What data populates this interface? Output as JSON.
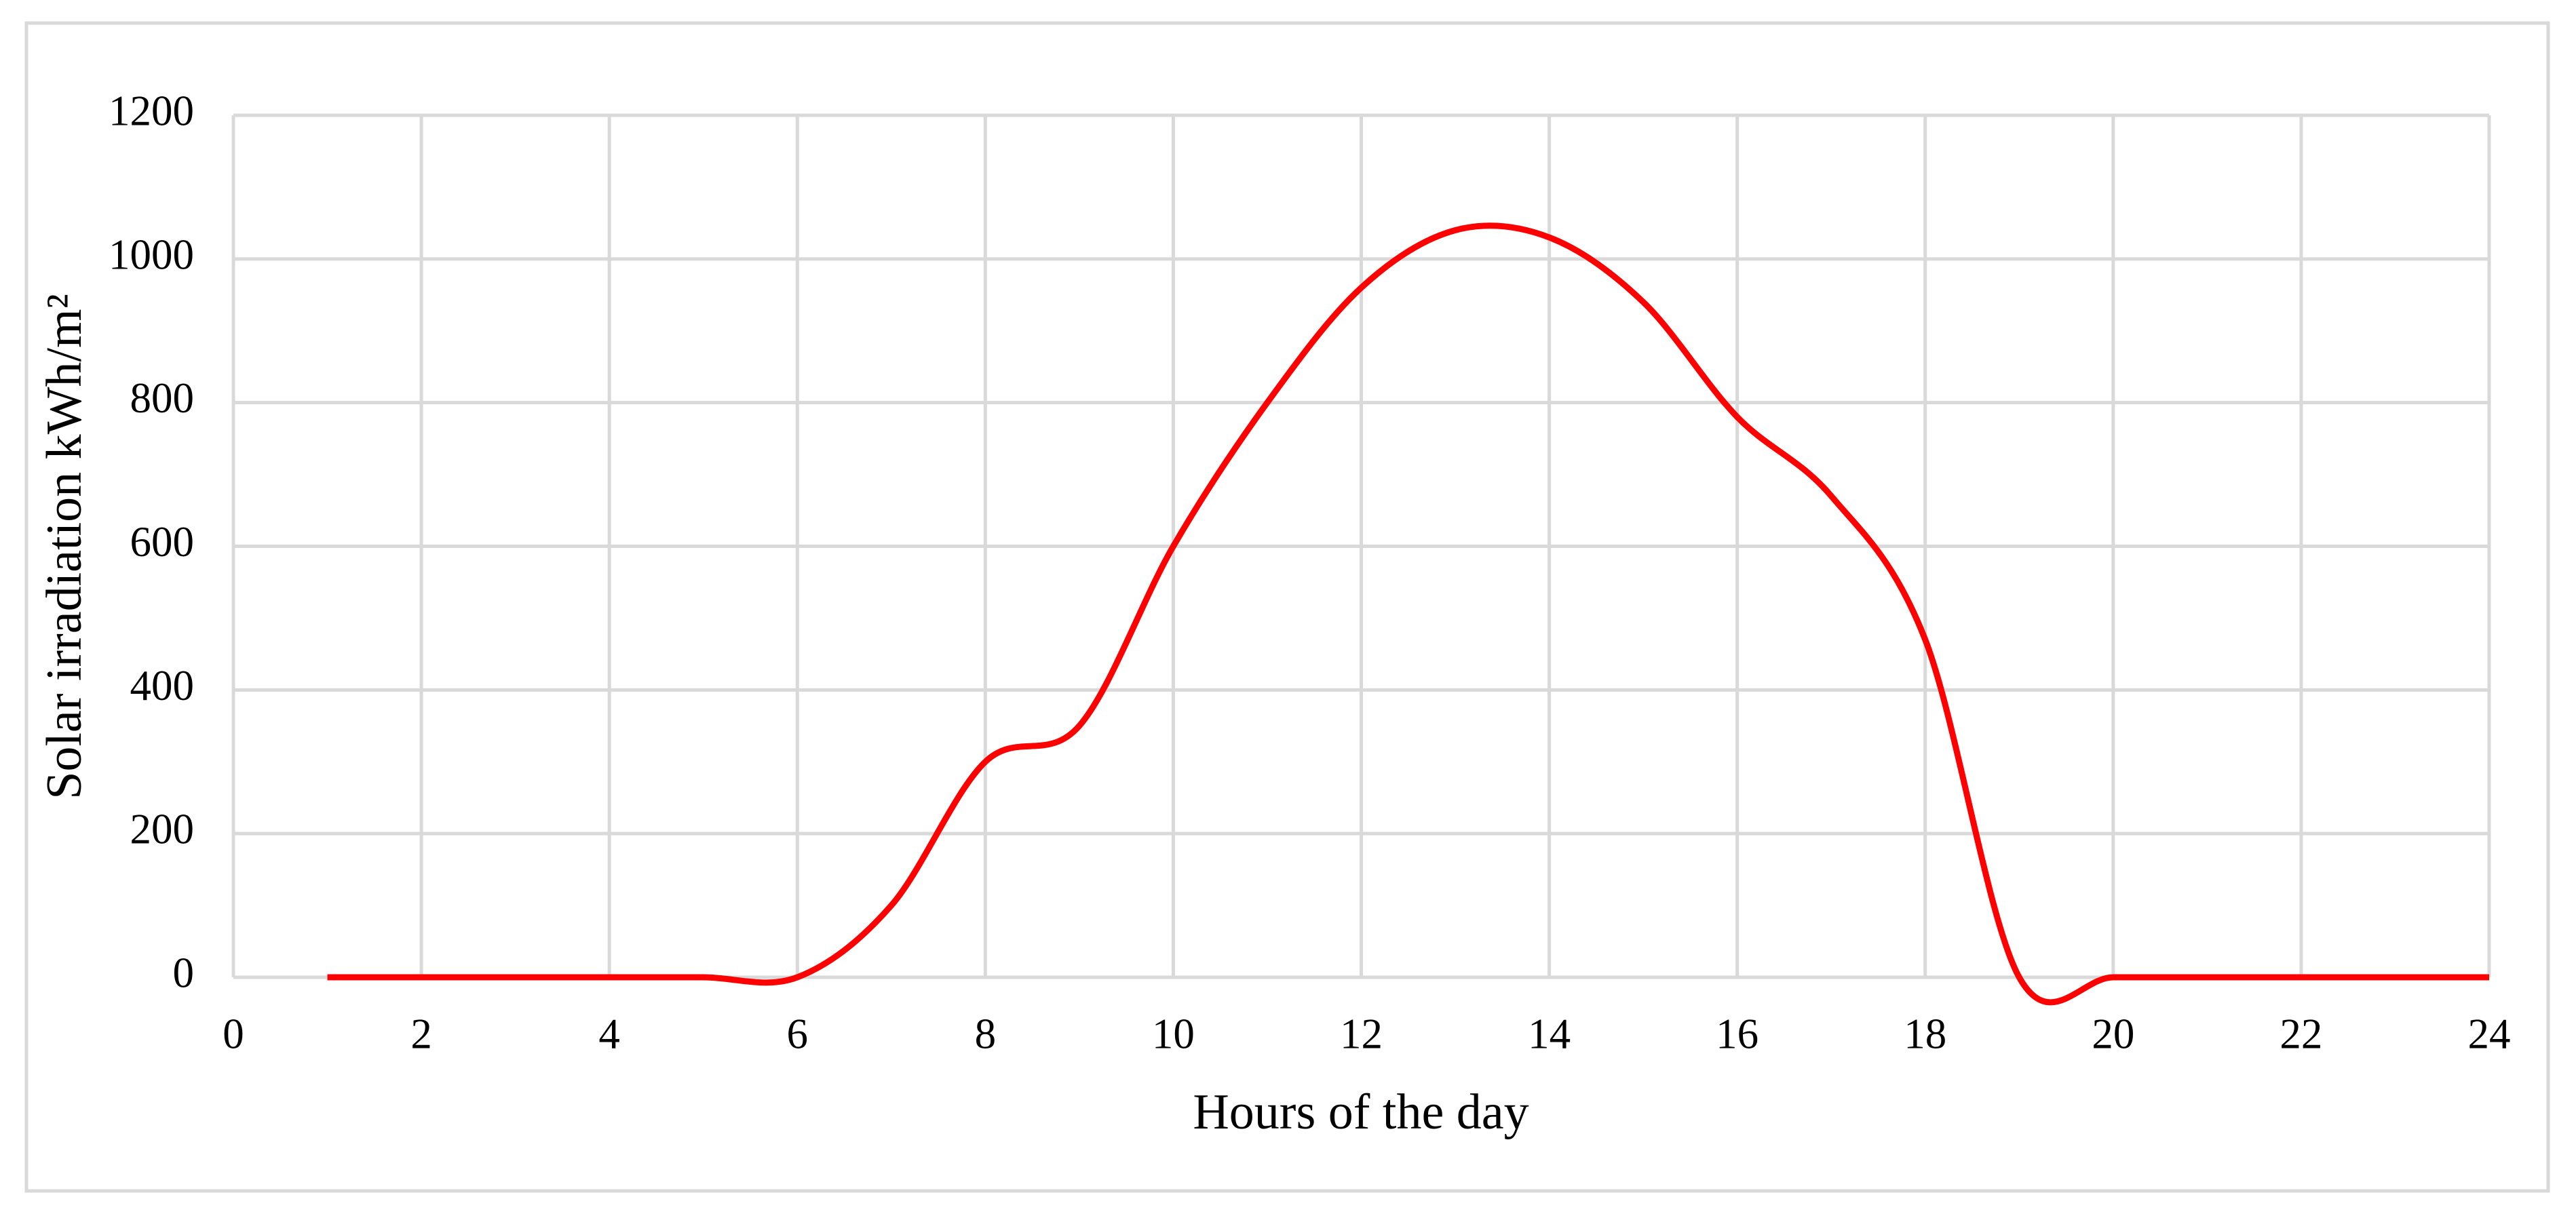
{
  "chart_data": {
    "type": "line",
    "x_label": "Hours of the day",
    "y_label": "Solar irradiation kWh/m²",
    "x": [
      1,
      2,
      3,
      4,
      5,
      6,
      7,
      8,
      9,
      10,
      11,
      12,
      13,
      14,
      15,
      16,
      17,
      18,
      19,
      20,
      21,
      22,
      23,
      24
    ],
    "series": [
      {
        "color": "#ff0000",
        "values": [
          0,
          0,
          0,
          0,
          0,
          0,
          100,
          300,
          350,
          600,
          800,
          960,
          1040,
          1030,
          940,
          780,
          670,
          470,
          0,
          0,
          0,
          0,
          0,
          0
        ]
      }
    ],
    "xlim": [
      0,
      24
    ],
    "xticks": [
      0,
      2,
      4,
      6,
      8,
      10,
      12,
      14,
      16,
      18,
      20,
      22,
      24
    ],
    "ylim": [
      0,
      1200
    ],
    "yticks": [
      0,
      200,
      400,
      600,
      800,
      1000,
      1200
    ],
    "grid": true
  }
}
